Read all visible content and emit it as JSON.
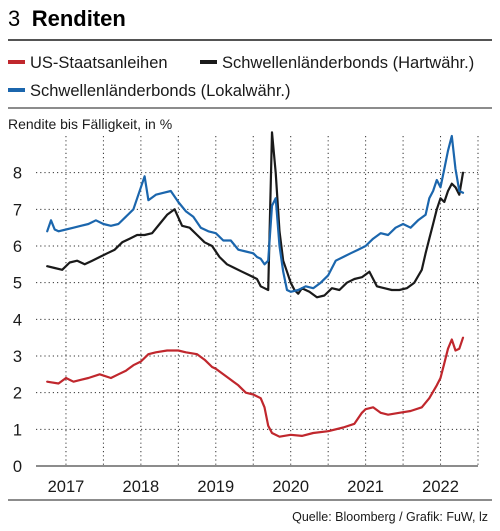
{
  "header": {
    "number": "3",
    "title": "Renditen"
  },
  "source": "Quelle: Bloomberg / Grafik: FuW, lz",
  "colors": {
    "us": "#c0272d",
    "hard": "#1a1a1a",
    "local": "#1b66ad",
    "rule": "#1a1a1a"
  },
  "chart_data": {
    "type": "line",
    "title": "Renditen",
    "ylabel": "Rendite bis Fälligkeit, in %",
    "ylim": [
      0,
      9
    ],
    "yticks": [
      0,
      1,
      2,
      3,
      4,
      5,
      6,
      7,
      8
    ],
    "xlim": [
      2016.6,
      2022.5
    ],
    "xticks": [
      2017,
      2018,
      2019,
      2020,
      2021,
      2022
    ],
    "grid": "vertical-dotted",
    "legend": "top",
    "series": [
      {
        "name": "US-Staatsanleihen",
        "color": "#c0272d",
        "x": [
          2016.75,
          2016.9,
          2017.0,
          2017.1,
          2017.2,
          2017.3,
          2017.45,
          2017.6,
          2017.7,
          2017.8,
          2017.9,
          2018.0,
          2018.1,
          2018.2,
          2018.35,
          2018.5,
          2018.6,
          2018.75,
          2018.85,
          2018.95,
          2019.0,
          2019.1,
          2019.2,
          2019.3,
          2019.4,
          2019.5,
          2019.6,
          2019.65,
          2019.7,
          2019.75,
          2019.85,
          2020.0,
          2020.15,
          2020.3,
          2020.5,
          2020.7,
          2020.85,
          2020.95,
          2021.0,
          2021.1,
          2021.2,
          2021.3,
          2021.45,
          2021.6,
          2021.75,
          2021.85,
          2021.95,
          2022.0,
          2022.05,
          2022.1,
          2022.15,
          2022.2,
          2022.25,
          2022.3
        ],
        "values": [
          2.3,
          2.25,
          2.4,
          2.3,
          2.35,
          2.4,
          2.5,
          2.4,
          2.5,
          2.6,
          2.75,
          2.85,
          3.05,
          3.1,
          3.15,
          3.15,
          3.1,
          3.05,
          2.9,
          2.7,
          2.65,
          2.5,
          2.35,
          2.2,
          2.0,
          1.95,
          1.85,
          1.6,
          1.1,
          0.9,
          0.8,
          0.85,
          0.82,
          0.9,
          0.95,
          1.05,
          1.15,
          1.45,
          1.55,
          1.6,
          1.45,
          1.4,
          1.45,
          1.5,
          1.6,
          1.85,
          2.2,
          2.4,
          2.8,
          3.2,
          3.45,
          3.15,
          3.2,
          3.5
        ]
      },
      {
        "name": "Schwellenländerbonds (Hartwähr.)",
        "color": "#1a1a1a",
        "x": [
          2016.75,
          2016.85,
          2016.95,
          2017.05,
          2017.15,
          2017.25,
          2017.35,
          2017.45,
          2017.55,
          2017.65,
          2017.75,
          2017.85,
          2017.95,
          2018.05,
          2018.15,
          2018.25,
          2018.35,
          2018.45,
          2018.55,
          2018.65,
          2018.75,
          2018.85,
          2018.95,
          2019.05,
          2019.15,
          2019.25,
          2019.35,
          2019.45,
          2019.55,
          2019.6,
          2019.65,
          2019.7,
          2019.75,
          2019.8,
          2019.85,
          2019.9,
          2019.95,
          2020.0,
          2020.05,
          2020.1,
          2020.15,
          2020.25,
          2020.35,
          2020.45,
          2020.55,
          2020.65,
          2020.75,
          2020.85,
          2020.95,
          2021.05,
          2021.15,
          2021.25,
          2021.35,
          2021.45,
          2021.55,
          2021.65,
          2021.75,
          2021.8,
          2021.85,
          2021.9,
          2021.95,
          2022.0,
          2022.05,
          2022.1,
          2022.15,
          2022.2,
          2022.25,
          2022.3
        ],
        "values": [
          5.45,
          5.4,
          5.35,
          5.55,
          5.6,
          5.5,
          5.6,
          5.7,
          5.8,
          5.9,
          6.1,
          6.2,
          6.3,
          6.3,
          6.35,
          6.6,
          6.85,
          7.0,
          6.55,
          6.5,
          6.3,
          6.1,
          6.0,
          5.7,
          5.5,
          5.4,
          5.3,
          5.2,
          5.1,
          4.9,
          4.85,
          4.8,
          9.1,
          8.0,
          6.4,
          5.6,
          5.3,
          5.0,
          4.8,
          4.7,
          4.85,
          4.75,
          4.6,
          4.65,
          4.85,
          4.8,
          5.0,
          5.1,
          5.15,
          5.3,
          4.9,
          4.85,
          4.8,
          4.8,
          4.85,
          5.0,
          5.35,
          5.8,
          6.2,
          6.6,
          7.0,
          7.3,
          7.2,
          7.5,
          7.7,
          7.6,
          7.4,
          8.0
        ]
      },
      {
        "name": "Schwellenländerbonds (Lokalwähr.)",
        "color": "#1b66ad",
        "x": [
          2016.75,
          2016.8,
          2016.85,
          2016.9,
          2017.0,
          2017.1,
          2017.2,
          2017.3,
          2017.4,
          2017.5,
          2017.6,
          2017.7,
          2017.8,
          2017.9,
          2018.0,
          2018.05,
          2018.1,
          2018.2,
          2018.3,
          2018.4,
          2018.5,
          2018.6,
          2018.7,
          2018.8,
          2018.9,
          2019.0,
          2019.1,
          2019.2,
          2019.3,
          2019.4,
          2019.5,
          2019.55,
          2019.6,
          2019.65,
          2019.7,
          2019.75,
          2019.8,
          2019.85,
          2019.9,
          2019.95,
          2020.0,
          2020.1,
          2020.2,
          2020.3,
          2020.4,
          2020.5,
          2020.6,
          2020.7,
          2020.8,
          2020.9,
          2021.0,
          2021.1,
          2021.2,
          2021.3,
          2021.4,
          2021.5,
          2021.6,
          2021.7,
          2021.8,
          2021.85,
          2021.9,
          2021.95,
          2022.0,
          2022.05,
          2022.1,
          2022.15,
          2022.2,
          2022.25,
          2022.3
        ],
        "values": [
          6.4,
          6.7,
          6.45,
          6.4,
          6.45,
          6.5,
          6.55,
          6.6,
          6.7,
          6.6,
          6.55,
          6.6,
          6.8,
          7.0,
          7.6,
          7.9,
          7.25,
          7.4,
          7.45,
          7.5,
          7.2,
          6.95,
          6.8,
          6.5,
          6.4,
          6.35,
          6.15,
          6.15,
          5.9,
          5.85,
          5.8,
          5.7,
          5.65,
          5.5,
          5.6,
          7.1,
          7.3,
          6.0,
          5.3,
          4.8,
          4.75,
          4.8,
          4.9,
          4.85,
          5.0,
          5.2,
          5.6,
          5.7,
          5.8,
          5.9,
          6.0,
          6.2,
          6.35,
          6.3,
          6.5,
          6.6,
          6.5,
          6.7,
          6.85,
          7.3,
          7.5,
          7.8,
          7.6,
          8.1,
          8.6,
          9.0,
          8.1,
          7.5,
          7.45
        ]
      }
    ]
  }
}
